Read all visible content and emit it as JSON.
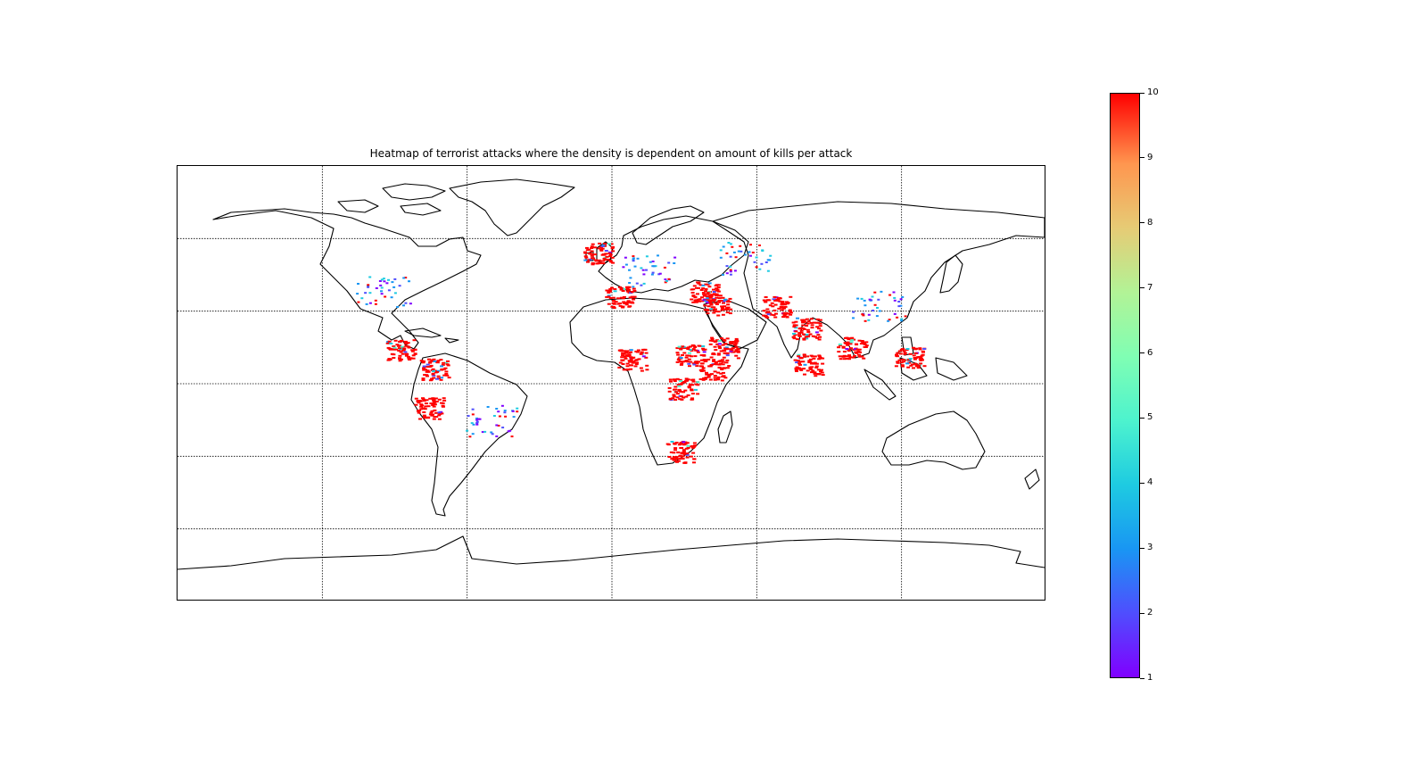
{
  "title": "Heatmap of terrorist attacks where the density is dependent on amount of kills per attack",
  "chart_data": {
    "type": "heatmap",
    "title": "Heatmap of terrorist attacks where the density is dependent on amount of kills per attack",
    "projection": "equirectangular world map with coastlines",
    "grid": true,
    "colormap": "rainbow",
    "colorbar": {
      "range": [
        1,
        10
      ],
      "ticks": [
        "1",
        "2",
        "3",
        "4",
        "5",
        "6",
        "7",
        "8",
        "9",
        "10"
      ],
      "placement": "right"
    },
    "hotspots": [
      {
        "region": "Central America",
        "lon": -88,
        "lat": 14,
        "value": 10
      },
      {
        "region": "Colombia",
        "lon": -74,
        "lat": 6,
        "value": 10
      },
      {
        "region": "Peru",
        "lon": -76,
        "lat": -10,
        "value": 10
      },
      {
        "region": "Northern Ireland / UK",
        "lon": -6,
        "lat": 54,
        "value": 10
      },
      {
        "region": "Algeria / Maghreb",
        "lon": 3,
        "lat": 36,
        "value": 10
      },
      {
        "region": "Nigeria",
        "lon": 8,
        "lat": 10,
        "value": 10
      },
      {
        "region": "Sudan",
        "lon": 32,
        "lat": 12,
        "value": 10
      },
      {
        "region": "Somalia / Ethiopia",
        "lon": 42,
        "lat": 6,
        "value": 10
      },
      {
        "region": "Great Lakes (Africa)",
        "lon": 29,
        "lat": -2,
        "value": 10
      },
      {
        "region": "South Africa",
        "lon": 28,
        "lat": -28,
        "value": 10
      },
      {
        "region": "Turkey",
        "lon": 38,
        "lat": 38,
        "value": 10
      },
      {
        "region": "Iraq / Syria",
        "lon": 43,
        "lat": 33,
        "value": 10
      },
      {
        "region": "Yemen",
        "lon": 46,
        "lat": 15,
        "value": 10
      },
      {
        "region": "Afghanistan / Pakistan",
        "lon": 68,
        "lat": 32,
        "value": 10
      },
      {
        "region": "India",
        "lon": 80,
        "lat": 23,
        "value": 10
      },
      {
        "region": "Sri Lanka",
        "lon": 81,
        "lat": 8,
        "value": 10
      },
      {
        "region": "Myanmar / Thailand",
        "lon": 99,
        "lat": 15,
        "value": 10
      },
      {
        "region": "Philippines",
        "lon": 123,
        "lat": 11,
        "value": 10
      },
      {
        "region": "Europe (scattered)",
        "lon": 15,
        "lat": 47,
        "value": 2
      },
      {
        "region": "United States (scattered)",
        "lon": -95,
        "lat": 38,
        "value": 1
      },
      {
        "region": "Brazil (scattered)",
        "lon": -50,
        "lat": -15,
        "value": 2
      },
      {
        "region": "China (scattered)",
        "lon": 110,
        "lat": 32,
        "value": 2
      },
      {
        "region": "Russia (scattered)",
        "lon": 55,
        "lat": 52,
        "value": 3
      }
    ]
  }
}
